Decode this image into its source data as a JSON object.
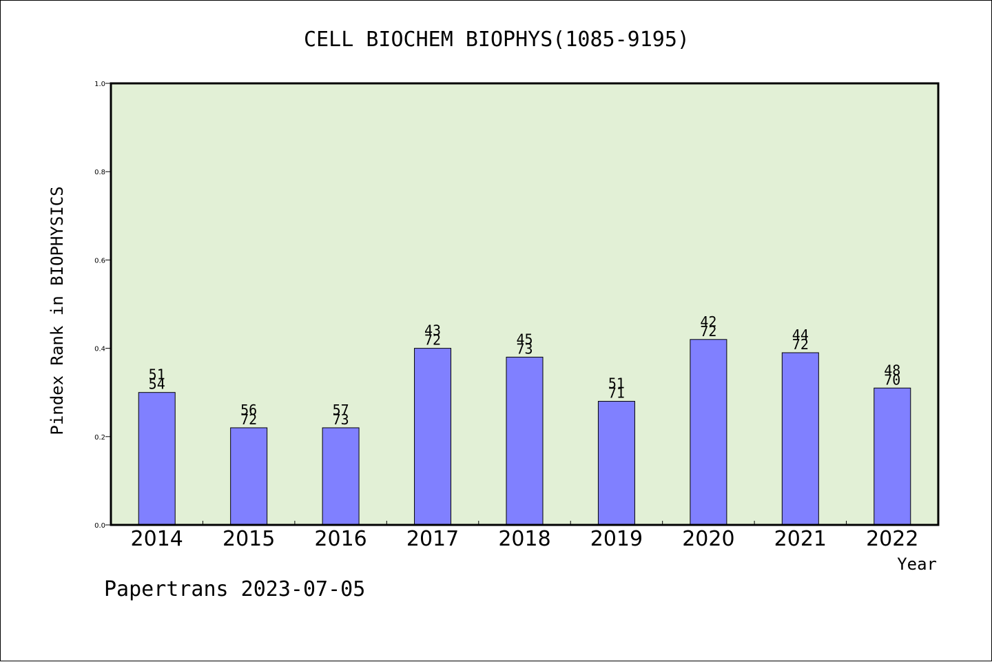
{
  "chart_data": {
    "type": "bar",
    "title": "CELL BIOCHEM BIOPHYS(1085-9195)",
    "xlabel": "Year",
    "ylabel": "Pindex Rank in BIOPHYSICS",
    "ylim": [
      0,
      1.0
    ],
    "yticks": [
      "0.0",
      "0.2",
      "0.4",
      "0.6",
      "0.8",
      "1.0"
    ],
    "categories": [
      "2014",
      "2015",
      "2016",
      "2017",
      "2018",
      "2019",
      "2020",
      "2021",
      "2022"
    ],
    "values": [
      0.3,
      0.22,
      0.22,
      0.4,
      0.38,
      0.28,
      0.42,
      0.39,
      0.31
    ],
    "rank_labels": [
      "51",
      "56",
      "57",
      "43",
      "45",
      "51",
      "42",
      "44",
      "48"
    ],
    "total_labels": [
      "54",
      "72",
      "73",
      "72",
      "73",
      "71",
      "72",
      "72",
      "70"
    ],
    "grid": false,
    "colors": {
      "bar": "#8080ff",
      "plot_bg": "#e2f0d6",
      "axis": "#000000"
    }
  },
  "footer": {
    "credit": "Papertrans 2023-07-05"
  }
}
